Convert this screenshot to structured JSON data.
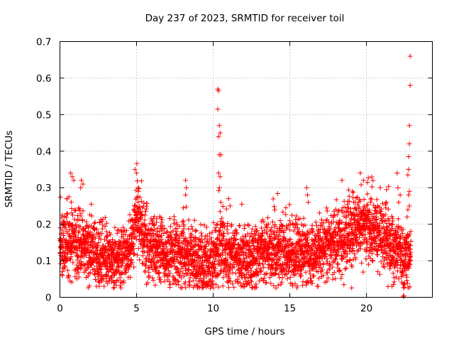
{
  "chart_data": {
    "type": "scatter",
    "title": "Day 237 of 2023, SRMTID for receiver toil",
    "xlabel": "GPS time / hours",
    "ylabel": "SRMTID / TECUs",
    "xlim": [
      0,
      24.3
    ],
    "ylim": [
      0,
      0.7
    ],
    "x_ticks": [
      0,
      5,
      10,
      15,
      20
    ],
    "x_tick_labels": [
      "0",
      "5",
      "10",
      "15",
      "20"
    ],
    "y_ticks": [
      0,
      0.1,
      0.2,
      0.3,
      0.4,
      0.5,
      0.6,
      0.7
    ],
    "y_tick_labels": [
      "0",
      "0.1",
      "0.2",
      "0.3",
      "0.4",
      "0.5",
      "0.6",
      "0.7"
    ],
    "grid": true,
    "marker": "plus",
    "color": "#ff0000",
    "sample_seed": 237,
    "sample_step_hours": 0.006,
    "baseline_profile": [
      [
        0.0,
        0.15
      ],
      [
        0.5,
        0.14
      ],
      [
        1.0,
        0.16
      ],
      [
        1.5,
        0.14
      ],
      [
        2.0,
        0.12
      ],
      [
        2.5,
        0.11
      ],
      [
        3.0,
        0.11
      ],
      [
        3.5,
        0.1
      ],
      [
        4.0,
        0.11
      ],
      [
        4.5,
        0.13
      ],
      [
        5.0,
        0.22
      ],
      [
        5.5,
        0.16
      ],
      [
        6.0,
        0.13
      ],
      [
        7.0,
        0.12
      ],
      [
        8.0,
        0.11
      ],
      [
        9.0,
        0.09
      ],
      [
        10.0,
        0.09
      ],
      [
        10.5,
        0.15
      ],
      [
        11.0,
        0.12
      ],
      [
        12.0,
        0.1
      ],
      [
        13.0,
        0.12
      ],
      [
        14.0,
        0.13
      ],
      [
        15.0,
        0.12
      ],
      [
        16.0,
        0.11
      ],
      [
        17.0,
        0.13
      ],
      [
        18.0,
        0.15
      ],
      [
        19.0,
        0.17
      ],
      [
        19.5,
        0.19
      ],
      [
        20.0,
        0.2
      ],
      [
        20.5,
        0.19
      ],
      [
        21.0,
        0.17
      ],
      [
        21.5,
        0.15
      ],
      [
        22.0,
        0.13
      ],
      [
        22.5,
        0.11
      ],
      [
        22.9,
        0.12
      ]
    ],
    "scatter_spread": 0.045,
    "spike_points": [
      {
        "x": 0.7,
        "y": 0.34
      },
      {
        "x": 0.8,
        "y": 0.33
      },
      {
        "x": 0.9,
        "y": 0.32
      },
      {
        "x": 1.4,
        "y": 0.32
      },
      {
        "x": 1.5,
        "y": 0.31
      },
      {
        "x": 1.35,
        "y": 0.3
      },
      {
        "x": 4.9,
        "y": 0.35
      },
      {
        "x": 5.0,
        "y": 0.34
      },
      {
        "x": 5.1,
        "y": 0.3
      },
      {
        "x": 8.2,
        "y": 0.32
      },
      {
        "x": 8.25,
        "y": 0.3
      },
      {
        "x": 8.2,
        "y": 0.28
      },
      {
        "x": 10.3,
        "y": 0.57
      },
      {
        "x": 10.35,
        "y": 0.565
      },
      {
        "x": 10.3,
        "y": 0.515
      },
      {
        "x": 10.4,
        "y": 0.47
      },
      {
        "x": 10.45,
        "y": 0.45
      },
      {
        "x": 10.35,
        "y": 0.44
      },
      {
        "x": 10.4,
        "y": 0.39
      },
      {
        "x": 10.5,
        "y": 0.39
      },
      {
        "x": 10.35,
        "y": 0.34
      },
      {
        "x": 10.45,
        "y": 0.33
      },
      {
        "x": 10.4,
        "y": 0.3
      },
      {
        "x": 10.5,
        "y": 0.26
      },
      {
        "x": 11.0,
        "y": 0.27
      },
      {
        "x": 11.1,
        "y": 0.25
      },
      {
        "x": 16.1,
        "y": 0.3
      },
      {
        "x": 16.15,
        "y": 0.28
      },
      {
        "x": 16.2,
        "y": 0.26
      },
      {
        "x": 18.4,
        "y": 0.32
      },
      {
        "x": 19.6,
        "y": 0.34
      },
      {
        "x": 19.8,
        "y": 0.32
      },
      {
        "x": 20.9,
        "y": 0.3
      },
      {
        "x": 21.3,
        "y": 0.26
      },
      {
        "x": 22.0,
        "y": 0.34
      },
      {
        "x": 22.05,
        "y": 0.3
      },
      {
        "x": 22.1,
        "y": 0.26
      },
      {
        "x": 22.2,
        "y": 0.28
      },
      {
        "x": 22.6,
        "y": 0.16
      },
      {
        "x": 22.4,
        "y": 0.003
      },
      {
        "x": 22.45,
        "y": 0.004
      },
      {
        "x": 22.85,
        "y": 0.66
      },
      {
        "x": 22.85,
        "y": 0.58
      },
      {
        "x": 22.8,
        "y": 0.47
      },
      {
        "x": 22.8,
        "y": 0.42
      },
      {
        "x": 22.75,
        "y": 0.385
      },
      {
        "x": 22.75,
        "y": 0.35
      },
      {
        "x": 22.7,
        "y": 0.335
      },
      {
        "x": 22.8,
        "y": 0.29
      },
      {
        "x": 22.75,
        "y": 0.28
      },
      {
        "x": 22.8,
        "y": 0.25
      },
      {
        "x": 22.7,
        "y": 0.24
      },
      {
        "x": 22.65,
        "y": 0.22
      },
      {
        "x": 22.6,
        "y": 0.12
      },
      {
        "x": 22.6,
        "y": 0.09
      }
    ]
  }
}
